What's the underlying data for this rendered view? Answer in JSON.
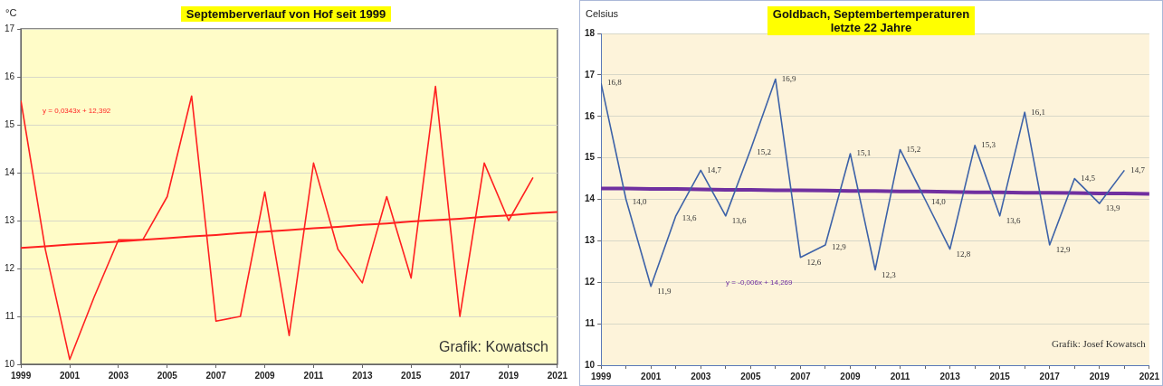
{
  "chart_data": [
    {
      "type": "line",
      "title": "Septemberverlauf von Hof seit 1999",
      "ylabel": "°C",
      "x": [
        1999,
        2000,
        2001,
        2002,
        2003,
        2004,
        2005,
        2006,
        2007,
        2008,
        2009,
        2010,
        2011,
        2012,
        2013,
        2014,
        2015,
        2016,
        2017,
        2018,
        2019,
        2020,
        2021
      ],
      "series": [
        {
          "color": "#ff2020",
          "values": [
            15.5,
            12.4,
            10.1,
            11.4,
            12.6,
            12.6,
            13.5,
            15.6,
            10.9,
            11.0,
            13.6,
            10.6,
            14.2,
            12.4,
            11.7,
            13.5,
            11.8,
            15.8,
            11.0,
            14.2,
            13.0,
            13.9,
            null
          ]
        },
        {
          "color": "#ff2020",
          "values": [
            12.43,
            12.46,
            12.5,
            12.53,
            12.56,
            12.6,
            12.63,
            12.67,
            12.7,
            12.74,
            12.77,
            12.8,
            12.84,
            12.87,
            12.91,
            12.94,
            12.98,
            13.01,
            13.04,
            13.08,
            13.11,
            13.15,
            13.18
          ]
        }
      ],
      "xlim": [
        1999,
        2021
      ],
      "xticks": [
        1999,
        2001,
        2003,
        2005,
        2007,
        2009,
        2011,
        2013,
        2015,
        2017,
        2019,
        2021
      ],
      "ylim": [
        10,
        17
      ],
      "yticks": [
        10,
        11,
        12,
        13,
        14,
        15,
        16,
        17
      ],
      "grid": "y",
      "legend": false,
      "annotations": [
        "y = 0,0343x + 12,392",
        "Grafik: Kowatsch"
      ]
    },
    {
      "type": "line",
      "title": "Goldbach, Septembertemperaturen\nletzte 22 Jahre",
      "ylabel": "Celsius",
      "x": [
        1999,
        2000,
        2001,
        2002,
        2003,
        2004,
        2005,
        2006,
        2007,
        2008,
        2009,
        2010,
        2011,
        2012,
        2013,
        2014,
        2015,
        2016,
        2017,
        2018,
        2019,
        2020,
        2021
      ],
      "series": [
        {
          "color": "#3d62a8",
          "values": [
            16.8,
            14.0,
            11.9,
            13.6,
            14.7,
            13.6,
            15.2,
            16.9,
            12.6,
            12.9,
            15.1,
            12.3,
            15.2,
            14.0,
            12.8,
            15.3,
            13.6,
            16.1,
            12.9,
            14.5,
            13.9,
            14.7,
            null
          ],
          "value_labels": [
            "16,8",
            "14,0",
            "11,9",
            "13,6",
            "14,7",
            "13,6",
            "15,2",
            "16,9",
            "12,6",
            "12,9",
            "15,1",
            "12,3",
            "15,2",
            "14,0",
            "12,8",
            "15,3",
            "13,6",
            "16,1",
            "12,9",
            "14,5",
            "13,9",
            "14,7",
            null
          ]
        },
        {
          "color": "#7030a0",
          "values": [
            14.26,
            14.26,
            14.25,
            14.25,
            14.24,
            14.23,
            14.23,
            14.22,
            14.22,
            14.21,
            14.2,
            14.2,
            14.19,
            14.19,
            14.18,
            14.17,
            14.17,
            14.16,
            14.16,
            14.15,
            14.14,
            14.14,
            14.13
          ]
        }
      ],
      "xlim": [
        1999,
        2021
      ],
      "xticks": [
        1999,
        {
          "value": 2000,
          "label": null
        },
        2001,
        {
          "value": 2002,
          "label": null
        },
        2003,
        {
          "value": 2004,
          "label": null
        },
        2005,
        {
          "value": 2006,
          "label": null
        },
        2007,
        {
          "value": 2008,
          "label": null
        },
        2009,
        {
          "value": 2010,
          "label": null
        },
        2011,
        {
          "value": 2012,
          "label": null
        },
        2013,
        {
          "value": 2014,
          "label": null
        },
        2015,
        {
          "value": 2016,
          "label": null
        },
        2017,
        {
          "value": 2018,
          "label": null
        },
        2019,
        {
          "value": 2020,
          "label": null
        },
        2021
      ],
      "ylim": [
        10,
        18
      ],
      "yticks": [
        10,
        11,
        12,
        13,
        14,
        15,
        16,
        17,
        18
      ],
      "grid": "y",
      "legend": false,
      "annotations": [
        "y = -0,006x + 14,269",
        "Grafik: Josef Kowatsch"
      ]
    }
  ]
}
